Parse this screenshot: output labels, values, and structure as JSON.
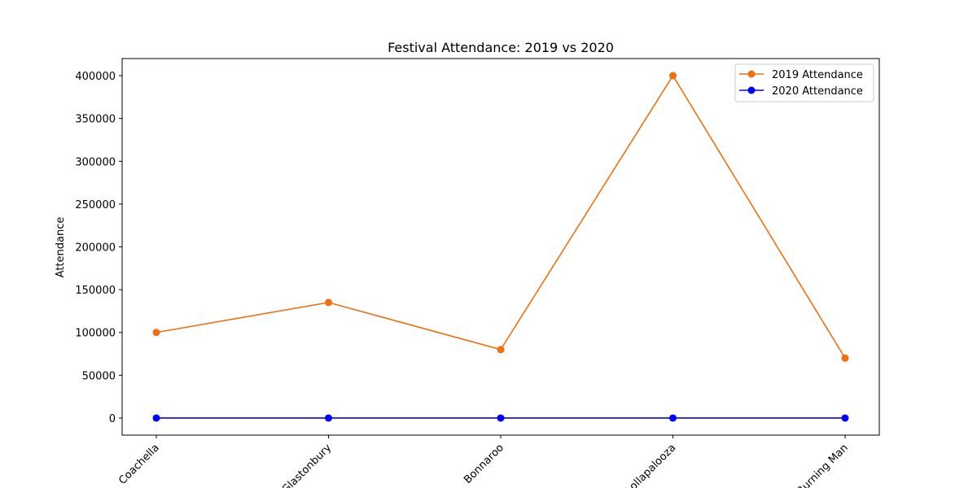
{
  "chart_data": {
    "type": "line",
    "title": "Festival Attendance: 2019 vs 2020",
    "xlabel": "",
    "ylabel": "Attendance",
    "categories": [
      "Coachella",
      "Glastonbury",
      "Bonnaroo",
      "Lollapalooza",
      "Burning Man"
    ],
    "series": [
      {
        "name": "2019 Attendance",
        "color": "#f07010",
        "marker": "circle",
        "values": [
          100000,
          135000,
          80000,
          400000,
          70000
        ]
      },
      {
        "name": "2020 Attendance",
        "color": "#0000ff",
        "marker": "circle",
        "values": [
          0,
          0,
          0,
          0,
          0
        ]
      }
    ],
    "ylim": [
      -20000,
      420000
    ],
    "yticks": [
      0,
      50000,
      100000,
      150000,
      200000,
      250000,
      300000,
      350000,
      400000
    ],
    "grid": false,
    "legend": "top-right",
    "xtick_rotation": 45
  }
}
